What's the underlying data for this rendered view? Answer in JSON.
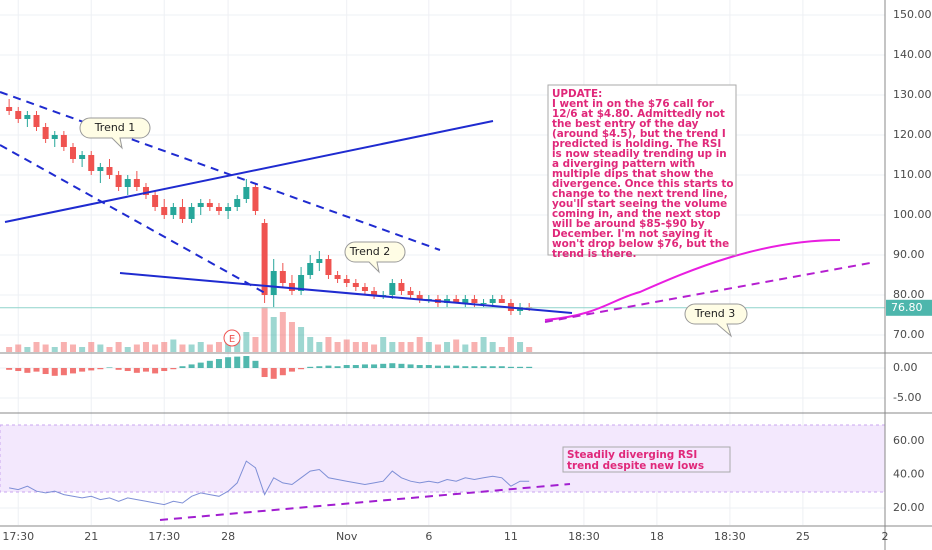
{
  "chart_data": [
    {
      "type": "candlestick",
      "xlim": [
        -1,
        96
      ],
      "ylim": [
        65.75,
        153.75
      ],
      "yticks": [
        {
          "value": 150,
          "label": "150.00"
        },
        {
          "value": 140,
          "label": "140.00"
        },
        {
          "value": 130,
          "label": "130.00"
        },
        {
          "value": 120,
          "label": "120.00"
        },
        {
          "value": 110,
          "label": "110.00"
        },
        {
          "value": 100,
          "label": "100.00"
        },
        {
          "value": 90,
          "label": "90.00"
        },
        {
          "value": 80,
          "label": "80.00"
        },
        {
          "value": 70,
          "label": "70.00"
        }
      ],
      "open": [
        127,
        126,
        124,
        125,
        122,
        119,
        120,
        117,
        114,
        115,
        111,
        112,
        110,
        107,
        109,
        107,
        105,
        102,
        100,
        102,
        99,
        102,
        103,
        102,
        101,
        102,
        104,
        107,
        98,
        80,
        86,
        83,
        81,
        85,
        88,
        89,
        85,
        84,
        83,
        82,
        81,
        80,
        80,
        83,
        81,
        80,
        79,
        79,
        78,
        79,
        78,
        79,
        78,
        78,
        79,
        78,
        76,
        77
      ],
      "high": [
        129,
        127,
        126,
        126,
        123,
        121,
        121,
        118,
        116,
        116,
        113,
        114,
        111,
        110,
        111,
        108,
        106,
        104,
        103,
        104,
        103,
        104,
        104,
        103,
        103,
        105,
        109,
        108,
        99,
        89,
        88,
        85,
        87,
        90,
        91,
        90,
        86,
        85,
        84,
        83,
        82,
        81,
        84,
        84,
        82,
        81,
        80,
        80,
        80,
        80,
        80,
        80,
        79,
        80,
        80,
        79,
        78,
        78
      ],
      "low": [
        125,
        123,
        122,
        121,
        118,
        117,
        116,
        113,
        112,
        110,
        108,
        109,
        106,
        105,
        106,
        104,
        101,
        99,
        99,
        98,
        98,
        100,
        101,
        100,
        99,
        101,
        103,
        100,
        78,
        77,
        82,
        80,
        80,
        84,
        86,
        84,
        83,
        82,
        81,
        80,
        79,
        79,
        79,
        80,
        79,
        78,
        78,
        77,
        77,
        78,
        77,
        77,
        77,
        77,
        78,
        75,
        75,
        76
      ],
      "close": [
        126,
        124,
        125,
        122,
        119,
        120,
        117,
        114,
        115,
        111,
        112,
        110,
        107,
        109,
        107,
        105,
        102,
        100,
        102,
        99,
        102,
        103,
        102,
        101,
        102,
        104,
        107,
        101,
        80,
        86,
        83,
        81,
        85,
        88,
        89,
        85,
        84,
        83,
        82,
        81,
        80,
        80,
        83,
        81,
        80,
        79,
        79,
        78,
        79,
        78,
        79,
        78,
        78,
        79,
        78,
        76,
        77,
        76.8
      ],
      "volume": [
        1,
        1.5,
        1,
        2,
        1.5,
        1,
        2,
        1.5,
        1,
        2,
        1.5,
        1,
        2,
        1,
        1.5,
        2,
        1.5,
        2,
        2.5,
        1.5,
        1.5,
        2,
        1.5,
        2,
        2.5,
        3,
        4,
        3,
        9,
        7,
        8,
        6,
        5,
        3,
        2,
        3,
        2,
        2.5,
        2,
        2,
        1.5,
        3,
        2,
        2,
        2,
        3,
        2,
        1.5,
        2,
        2.5,
        1.5,
        2,
        3,
        2,
        1,
        3,
        2,
        1
      ],
      "last_price": {
        "value": 76.8,
        "label": "76.80"
      },
      "annotations": {
        "callouts": [
          "Trend 1",
          "Trend 2",
          "Trend 3"
        ],
        "earnings": "E",
        "note": [
          "UPDATE:",
          "I went in on the $76 call for",
          "12/6 at $4.80. Admittedly not",
          "the best entry of the day",
          "(around $4.5), but the trend I",
          "predicted is holding. The RSI",
          "is now steadily trending up in",
          "a diverging pattern with",
          "multiple dips that show the",
          "divergence. Once this starts to",
          "change to the next trend line,",
          "you'll start seeing the volume",
          "coming in, and the next stop",
          "will be around $85-$90 by",
          "December. I'm not saying it",
          "won't drop below $76, but the",
          "trend is there."
        ]
      }
    },
    {
      "type": "bar",
      "xlim": [
        -1,
        96
      ],
      "ylim": [
        -7.33,
        2.17
      ],
      "yticks": [
        {
          "value": 0,
          "label": "0.00"
        },
        {
          "value": -5,
          "label": "-5.00"
        }
      ],
      "values": [
        -0.3,
        -0.5,
        -0.8,
        -0.6,
        -1,
        -1.3,
        -1.2,
        -0.9,
        -0.6,
        -0.4,
        -0.2,
        0.1,
        -0.3,
        -0.5,
        -0.8,
        -0.6,
        -0.9,
        -0.5,
        -0.2,
        0.3,
        0.6,
        0.9,
        1.2,
        1.5,
        1.8,
        1.9,
        2.0,
        1.2,
        -1.5,
        -1.8,
        -1.2,
        -0.6,
        -0.2,
        0.2,
        0.3,
        0.4,
        0.3,
        0.5,
        0.5,
        0.6,
        0.6,
        0.7,
        0.8,
        0.7,
        0.6,
        0.5,
        0.5,
        0.4,
        0.4,
        0.4,
        0.3,
        0.3,
        0.3,
        0.3,
        0.3,
        0.2,
        0.2,
        0.2
      ]
    },
    {
      "type": "line",
      "xlim": [
        -1,
        96
      ],
      "ylim": [
        9.85,
        75.5
      ],
      "yticks": [
        {
          "value": 60,
          "label": "60.00"
        },
        {
          "value": 40,
          "label": "40.00"
        },
        {
          "value": 20,
          "label": "20.00"
        }
      ],
      "values": [
        32,
        31,
        33,
        30,
        29,
        30,
        28,
        27,
        26,
        27,
        25,
        26,
        24,
        26,
        25,
        24,
        23,
        22,
        24,
        23,
        27,
        29,
        28,
        27,
        30,
        35,
        48,
        44,
        28,
        38,
        35,
        34,
        38,
        42,
        43,
        38,
        37,
        36,
        35,
        34,
        35,
        36,
        42,
        38,
        36,
        35,
        36,
        35,
        37,
        36,
        38,
        37,
        38,
        39,
        38,
        33,
        36,
        36
      ],
      "xticks": [
        {
          "value": 1,
          "label": "17:30"
        },
        {
          "value": 9,
          "label": "21"
        },
        {
          "value": 17,
          "label": "17:30"
        },
        {
          "value": 24,
          "label": "28"
        },
        {
          "value": 37,
          "label": "Nov"
        },
        {
          "value": 46,
          "label": "6"
        },
        {
          "value": 55,
          "label": "11"
        },
        {
          "value": 63,
          "label": "18:30"
        },
        {
          "value": 71,
          "label": "18"
        },
        {
          "value": 79,
          "label": "18:30"
        },
        {
          "value": 87,
          "label": "25"
        },
        {
          "value": 96,
          "label": "2"
        }
      ],
      "note": [
        "Steadily diverging RSI",
        "trend despite new lows"
      ]
    }
  ]
}
